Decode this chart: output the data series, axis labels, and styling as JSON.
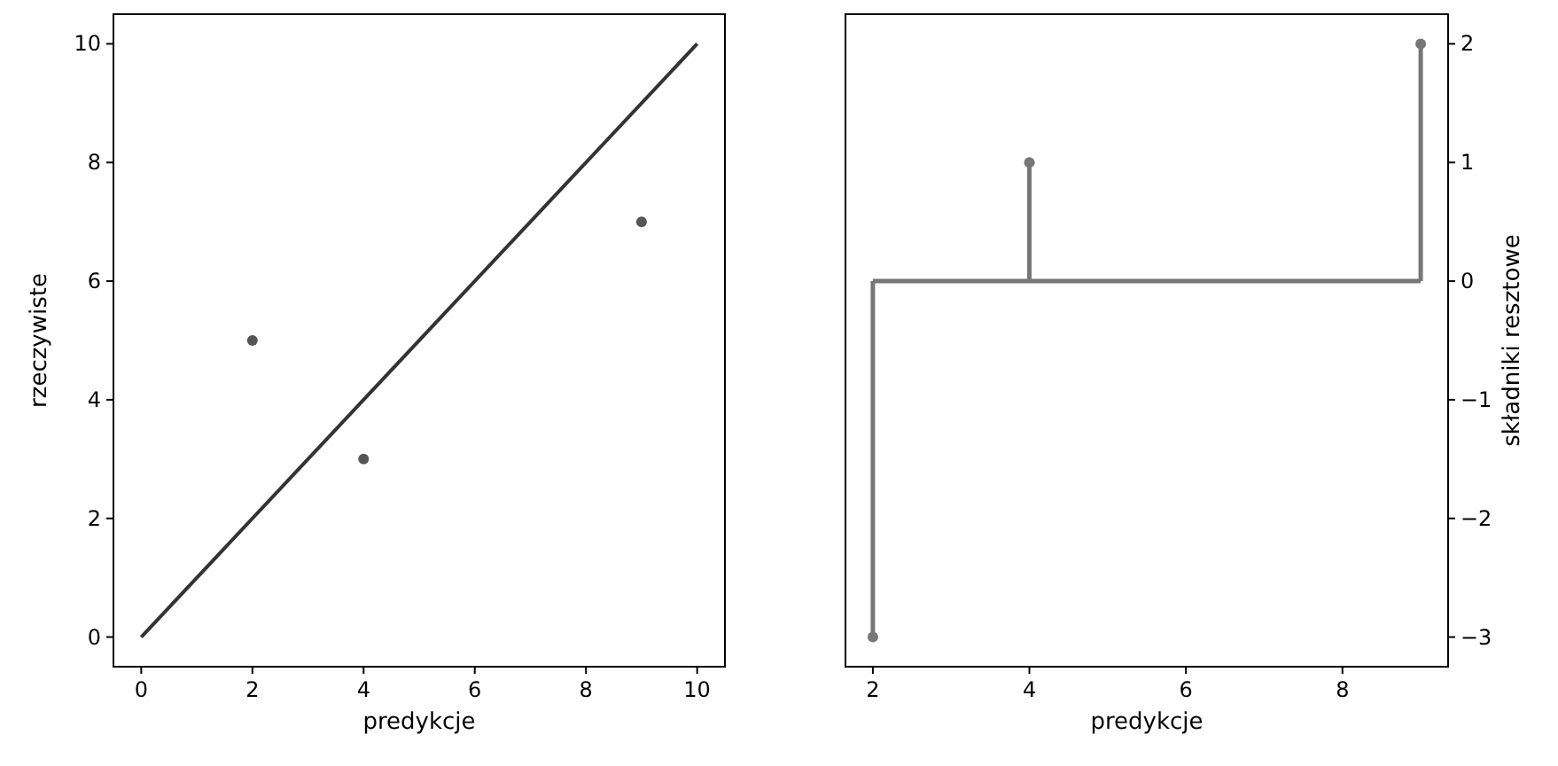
{
  "chart_data": [
    {
      "type": "scatter",
      "xlabel": "predykcje",
      "ylabel": "rzeczywiste",
      "xlim": [
        -0.5,
        10.5
      ],
      "ylim": [
        -0.5,
        10.5
      ],
      "xticks": [
        0,
        2,
        4,
        6,
        8,
        10
      ],
      "yticks": [
        0,
        2,
        4,
        6,
        8,
        10
      ],
      "series": [
        {
          "marker": "circle",
          "color": "#555555",
          "x": [
            2,
            4,
            9
          ],
          "values": [
            5,
            3,
            7
          ]
        },
        {
          "type": "line",
          "marker": "none",
          "color": "#333333",
          "x": [
            0,
            10
          ],
          "values": [
            0,
            10
          ]
        }
      ]
    },
    {
      "type": "lollipop",
      "xlabel": "predykcje",
      "y2label": "składniki resztowe",
      "xlim": [
        1.65,
        9.35
      ],
      "y2lim": [
        -3.25,
        2.25
      ],
      "xticks": [
        2,
        4,
        6,
        8
      ],
      "y2ticks": [
        {
          "value": -3,
          "label": "−3"
        },
        {
          "value": -2,
          "label": "−2"
        },
        {
          "value": -1,
          "label": "−1"
        },
        0,
        1,
        2
      ],
      "marker": "circle",
      "series": [
        {
          "axis": "y2",
          "color": "#777777",
          "x": [
            2,
            4,
            9
          ],
          "values": [
            -3,
            1,
            2
          ]
        }
      ]
    }
  ]
}
